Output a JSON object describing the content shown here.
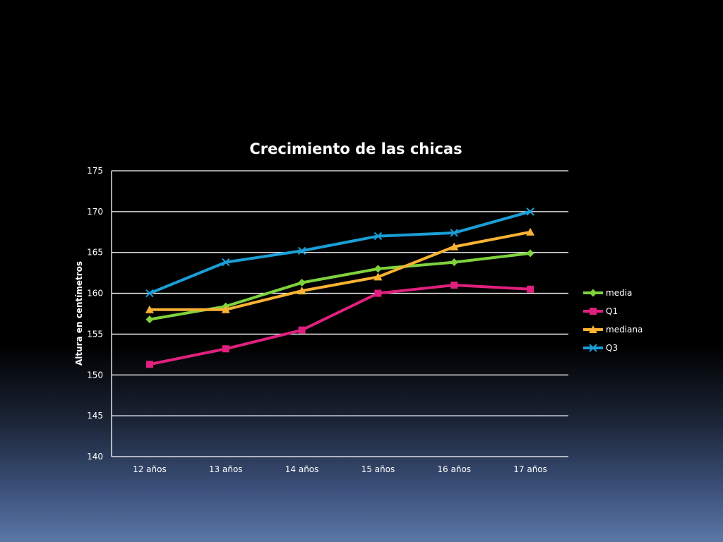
{
  "chart_data": {
    "type": "line",
    "title": "Crecimiento de las chicas",
    "xlabel": "",
    "ylabel": "Altura en centímetros",
    "categories": [
      "12 años",
      "13 años",
      "14 años",
      "15 años",
      "16 años",
      "17 años"
    ],
    "ylim": [
      140,
      175
    ],
    "yticks": [
      140,
      145,
      150,
      155,
      160,
      165,
      170,
      175
    ],
    "yticks_labels": [
      "140",
      "145",
      "150",
      "155",
      "160",
      "165",
      "170",
      "175"
    ],
    "grid": true,
    "legend_position": "right",
    "series": [
      {
        "name": "media",
        "values": [
          156.8,
          158.4,
          161.3,
          163.0,
          163.8,
          164.9
        ],
        "color": "#7ed23c",
        "marker": "diamond"
      },
      {
        "name": "Q1",
        "values": [
          151.3,
          153.2,
          155.5,
          160.0,
          161.0,
          160.5
        ],
        "color": "#e0207e",
        "marker": "square"
      },
      {
        "name": "mediana",
        "values": [
          158.0,
          158.0,
          160.3,
          162.0,
          165.7,
          167.5
        ],
        "color": "#f9b233",
        "marker": "triangle"
      },
      {
        "name": "Q3",
        "values": [
          160.0,
          163.8,
          165.2,
          167.0,
          167.4,
          170.0
        ],
        "color": "#1a9fd6",
        "marker": "x"
      }
    ]
  }
}
